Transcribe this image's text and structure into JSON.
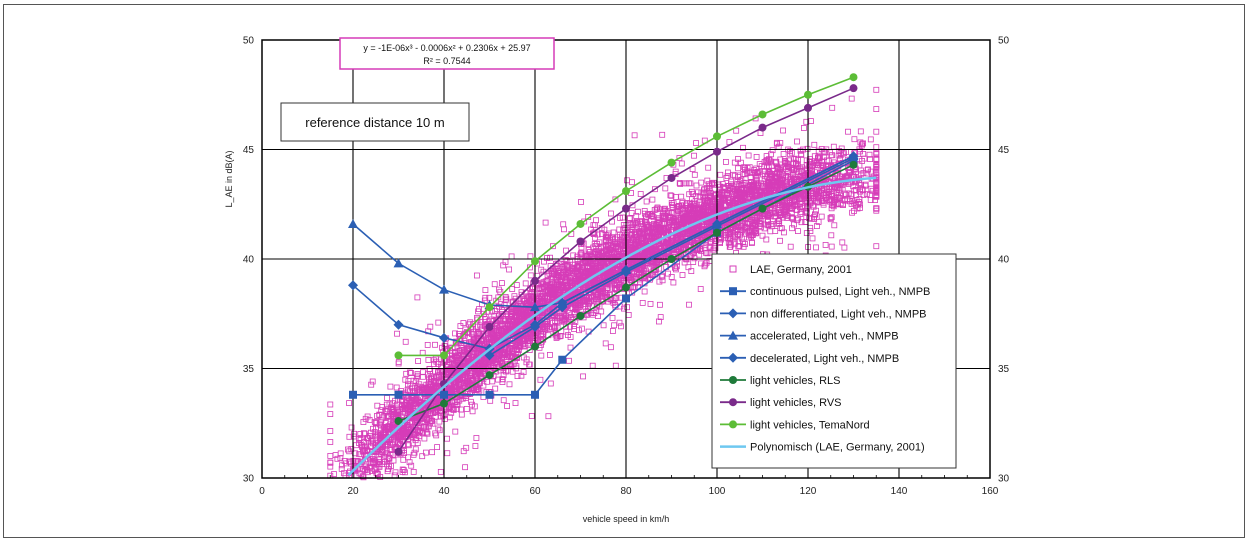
{
  "chart_data": {
    "type": "scatter",
    "xlabel": "vehicle speed in km/h",
    "ylabel": "L_AE in dB(A)",
    "xlim": [
      0,
      160
    ],
    "ylim": [
      30,
      50
    ],
    "xticks": [
      "0",
      "20",
      "40",
      "60",
      "80",
      "100",
      "120",
      "140",
      "160"
    ],
    "yticks_left": [
      "30",
      "35",
      "40",
      "45",
      "50"
    ],
    "yticks_right": [
      "30",
      "35",
      "40",
      "45",
      "50"
    ],
    "grid": true,
    "legend_position": "bottom-right",
    "equation": {
      "line1": "y = -1E-06x³ - 0.0006x² + 0.2306x + 25.97",
      "line2": "R² = 0.7544"
    },
    "annotation": "reference distance 10 m",
    "scatter_series": {
      "name": "LAE, Germany, 2001",
      "color": "#d63cb8",
      "x_range": [
        15,
        135
      ],
      "point_count": 6000
    },
    "series": [
      {
        "name": "continuous pulsed, Light veh., NMPB",
        "color": "#2b5fb4",
        "marker": "square",
        "x": [
          20,
          30,
          40,
          50,
          60,
          66,
          80,
          100,
          130
        ],
        "y": [
          33.8,
          33.8,
          33.8,
          33.8,
          33.8,
          35.4,
          38.2,
          41.2,
          44.5
        ]
      },
      {
        "name": "non differentiated, Light veh., NMPB",
        "color": "#2b5fb4",
        "marker": "diamond",
        "x": [
          20,
          30,
          40,
          50,
          60,
          66,
          80,
          100,
          130
        ],
        "y": [
          38.8,
          37.0,
          36.4,
          35.9,
          37.0,
          38.0,
          39.5,
          41.6,
          44.7
        ]
      },
      {
        "name": "accelerated, Light veh., NMPB",
        "color": "#2b5fb4",
        "marker": "triangle",
        "x": [
          20,
          30,
          40,
          50,
          60,
          66,
          80,
          100,
          130
        ],
        "y": [
          41.6,
          39.8,
          38.6,
          37.9,
          37.8,
          38.0,
          39.5,
          41.6,
          44.7
        ]
      },
      {
        "name": "decelerated, Light veh., NMPB",
        "color": "#2b5fb4",
        "marker": "diamond",
        "x": [
          50,
          60,
          66,
          80,
          100,
          130
        ],
        "y": [
          35.6,
          36.9,
          37.8,
          39.4,
          41.5,
          44.6
        ]
      },
      {
        "name": "light vehicles, RLS",
        "color": "#1f7a3a",
        "marker": "circle",
        "x": [
          30,
          40,
          50,
          60,
          70,
          80,
          90,
          100,
          110,
          120,
          130
        ],
        "y": [
          32.6,
          33.4,
          34.7,
          36.0,
          37.4,
          38.7,
          40.0,
          41.2,
          42.3,
          43.3,
          44.3
        ]
      },
      {
        "name": "light vehicles, RVS",
        "color": "#7a2a8a",
        "marker": "circle",
        "x": [
          30,
          40,
          50,
          60,
          70,
          80,
          90,
          100,
          110,
          120,
          130
        ],
        "y": [
          31.2,
          34.3,
          36.9,
          39.0,
          40.8,
          42.3,
          43.7,
          44.9,
          46.0,
          46.9,
          47.8
        ]
      },
      {
        "name": "light vehicles, TemaNord",
        "color": "#5cbd36",
        "marker": "circle",
        "x": [
          30,
          40,
          50,
          60,
          70,
          80,
          90,
          100,
          110,
          120,
          130
        ],
        "y": [
          35.6,
          35.6,
          37.8,
          39.9,
          41.6,
          43.1,
          44.4,
          45.6,
          46.6,
          47.5,
          48.3
        ]
      },
      {
        "name": "Polynomisch (LAE, Germany, 2001)",
        "color": "#6ec8f0",
        "marker": "none",
        "fit": {
          "a3": -1e-06,
          "a2": -0.0006,
          "a1": 0.2306,
          "a0": 25.97,
          "x_range": [
            19,
            135
          ]
        }
      }
    ]
  }
}
